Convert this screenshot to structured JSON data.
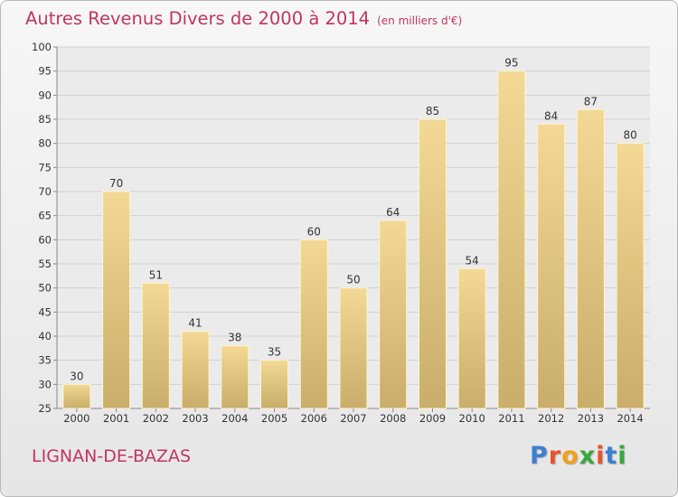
{
  "header": {
    "title": "Autres Revenus Divers de 2000 à 2014",
    "unit": "(en milliers d'€)"
  },
  "footer": {
    "commune": "LIGNAN-DE-BAZAS",
    "logo": "Proxiti"
  },
  "colors": {
    "title": "#c0365f",
    "bar_light": "#f3d995",
    "bar_dark": "#c9ad6a",
    "logo_letters": [
      "#3d7fd1",
      "#e6542b",
      "#f0a01e",
      "#3aa63f",
      "#e6542b",
      "#3d7fd1",
      "#3aa63f"
    ]
  },
  "chart_data": {
    "type": "bar",
    "title": "Autres Revenus Divers de 2000 à 2014",
    "ylabel": "",
    "xlabel": "",
    "categories": [
      "2000",
      "2001",
      "2002",
      "2003",
      "2004",
      "2005",
      "2006",
      "2007",
      "2008",
      "2009",
      "2010",
      "2011",
      "2012",
      "2013",
      "2014"
    ],
    "values": [
      30,
      70,
      51,
      41,
      38,
      35,
      60,
      50,
      64,
      85,
      54,
      95,
      84,
      87,
      80
    ],
    "ylim": [
      25,
      100
    ],
    "yticks": [
      25,
      30,
      35,
      40,
      45,
      50,
      55,
      60,
      65,
      70,
      75,
      80,
      85,
      90,
      95,
      100
    ],
    "grid": true,
    "legend": "none"
  }
}
